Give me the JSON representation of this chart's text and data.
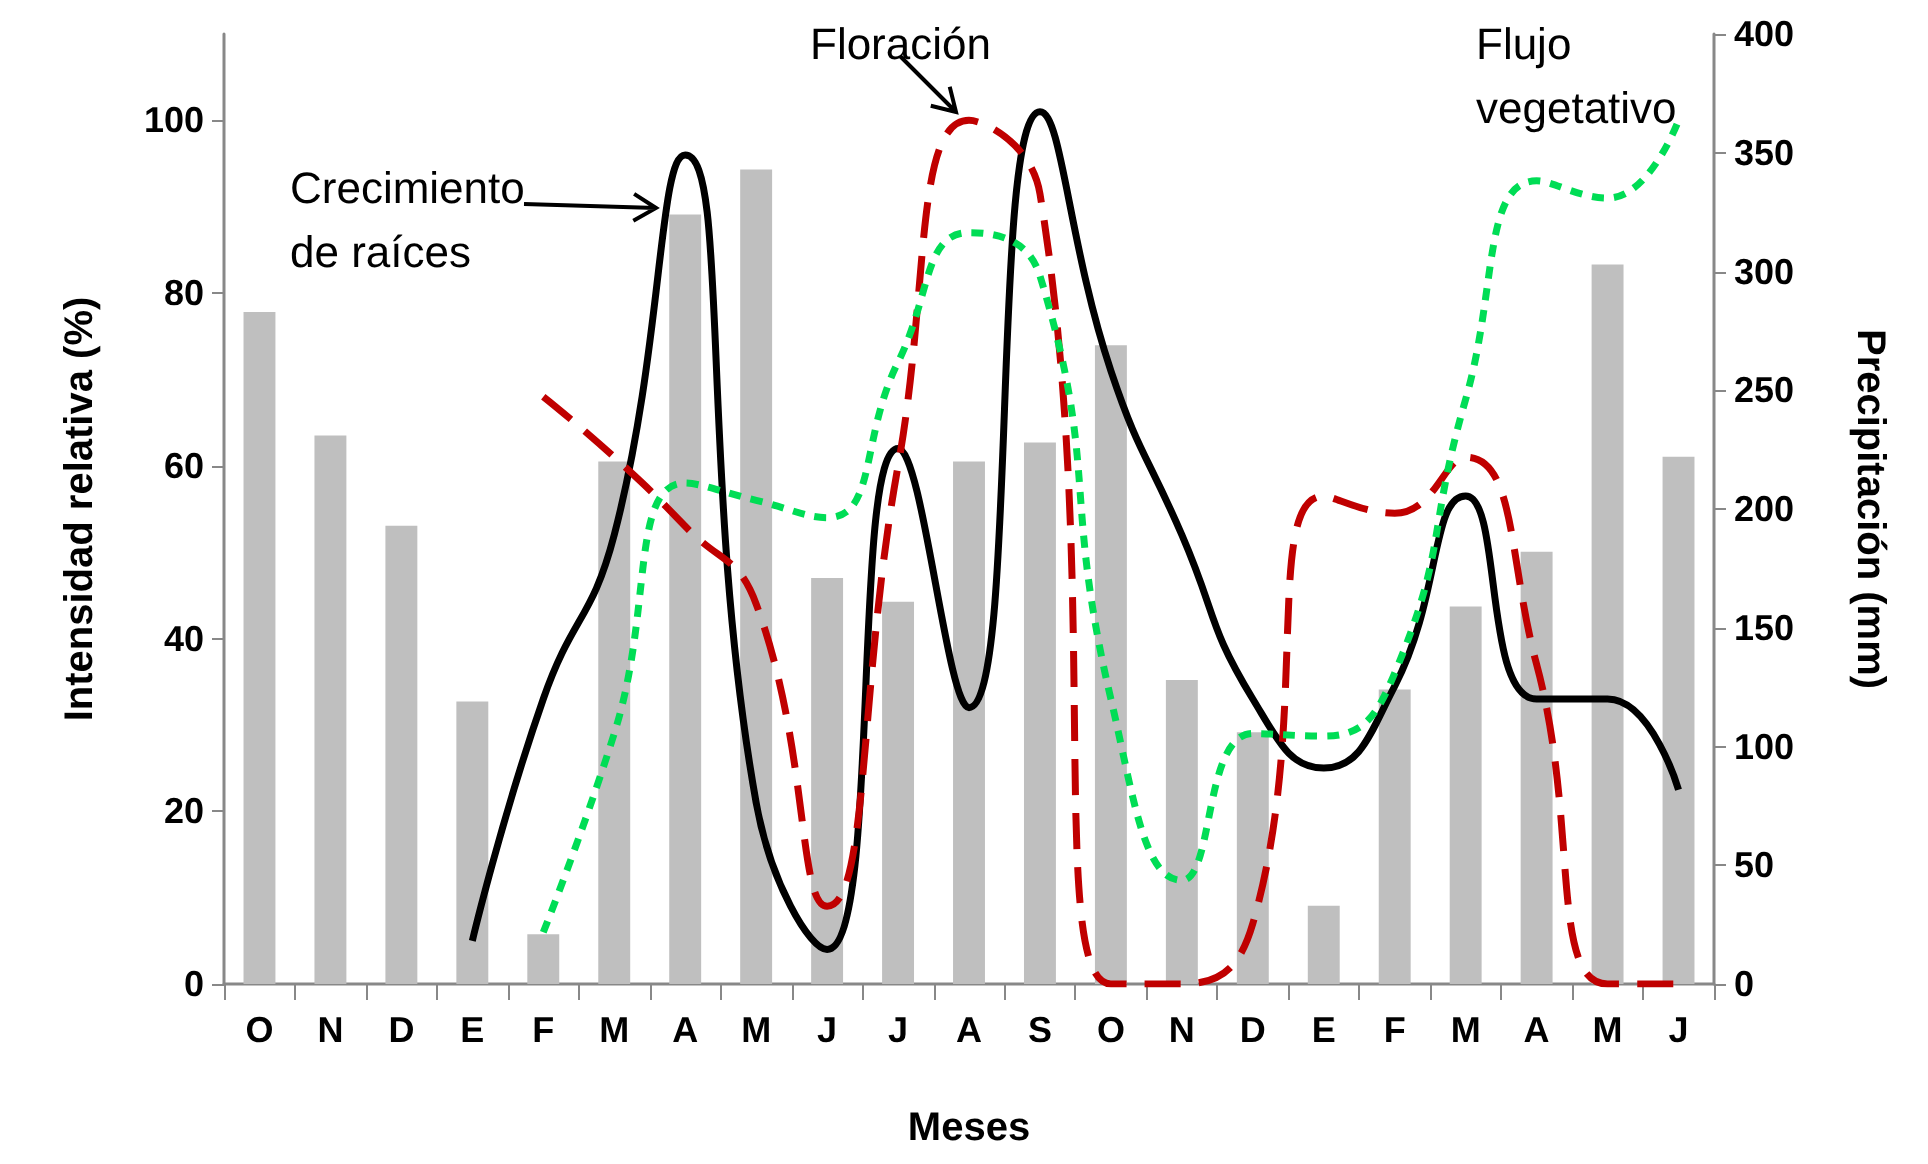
{
  "chart_data": {
    "type": "line",
    "xlabel": "Meses",
    "ylabel": "Intensidad relativa (%)",
    "y2label": "Precipitación (mm)",
    "categories": [
      "O",
      "N",
      "D",
      "E",
      "F",
      "M",
      "A",
      "M",
      "J",
      "J",
      "A",
      "S",
      "O",
      "N",
      "D",
      "E",
      "F",
      "M",
      "A",
      "M",
      "J"
    ],
    "ylim": [
      0,
      110
    ],
    "yticks": [
      0,
      20,
      40,
      60,
      80,
      100
    ],
    "y2lim": [
      0,
      400
    ],
    "y2ticks": [
      0,
      50,
      100,
      150,
      200,
      250,
      300,
      350,
      400
    ],
    "grid": false,
    "marker": "none",
    "series": [
      {
        "type": "bar",
        "axis": "y2",
        "color": "#bfbfbf",
        "values": [
          283,
          231,
          193,
          119,
          21,
          220,
          324,
          343,
          171,
          161,
          220,
          228,
          269,
          128,
          106,
          33,
          124,
          159,
          182,
          303,
          222
        ]
      },
      {
        "color": "#000000",
        "line_style": "solid",
        "values": [
          null,
          null,
          null,
          5,
          33,
          52,
          96,
          21,
          4,
          62,
          32,
          101,
          71,
          52,
          33,
          25,
          34.5,
          56.5,
          33,
          33,
          22.5
        ]
      },
      {
        "color": "#c00000",
        "line_style": "dashed",
        "values": [
          null,
          null,
          null,
          null,
          68,
          61,
          53,
          44,
          9,
          60,
          100,
          91.5,
          0,
          0,
          7,
          56.5,
          54.5,
          61,
          37,
          0,
          0
        ]
      },
      {
        "color": "#00dd55",
        "line_style": "dotted",
        "values": [
          null,
          null,
          null,
          null,
          6,
          29,
          58,
          56,
          54,
          72,
          87,
          82,
          33,
          12,
          29,
          28.7,
          36,
          67.7,
          93,
          91,
          100
        ]
      }
    ],
    "annotations": [
      "Crecimiento\nde raíces",
      "Floración",
      "Flujo\nvegetativo"
    ]
  }
}
